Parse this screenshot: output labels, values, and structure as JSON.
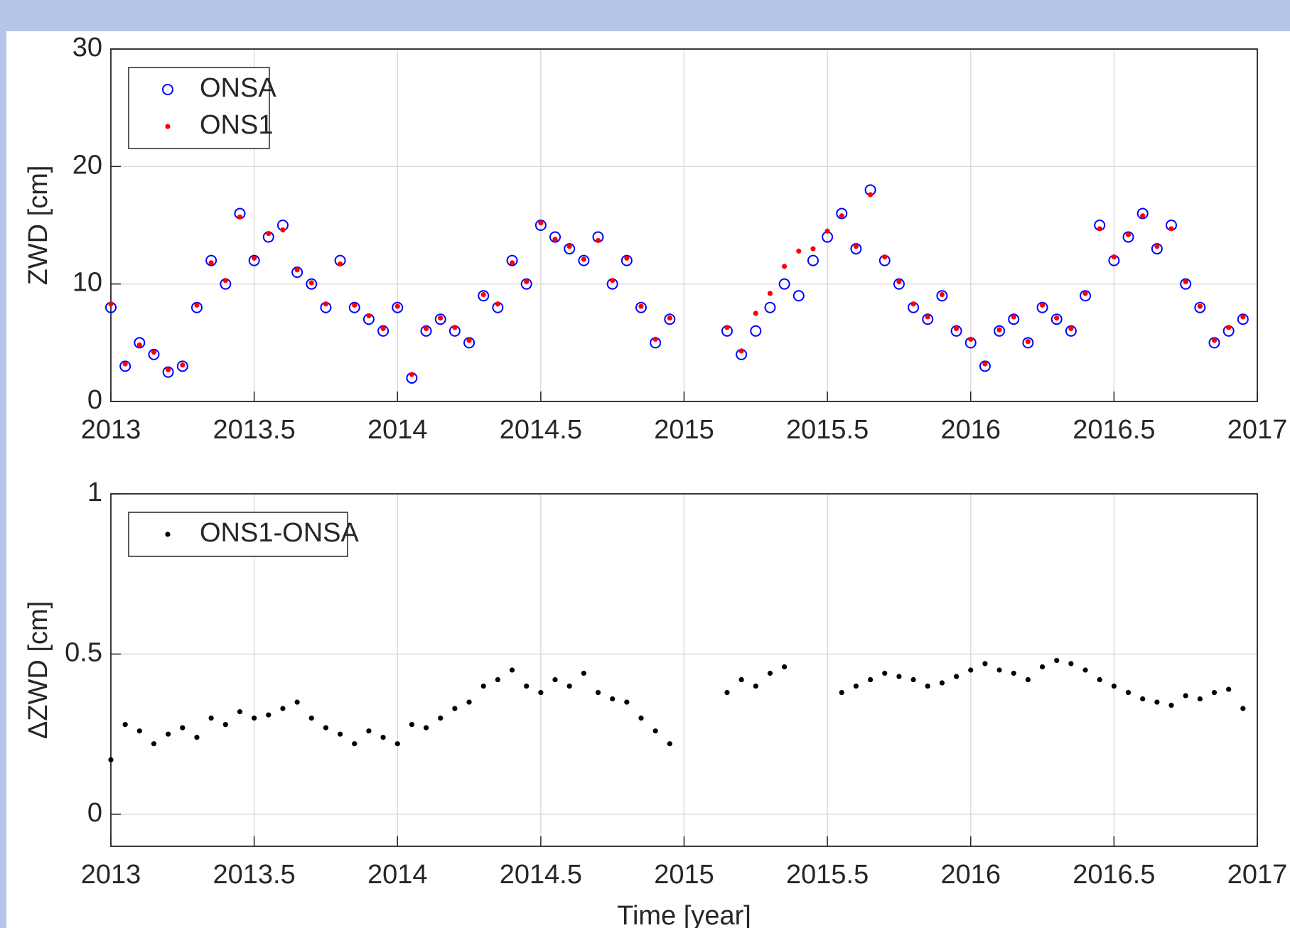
{
  "chart_data": [
    {
      "type": "scatter",
      "ylabel": "ZWD [cm]",
      "x": [
        2013,
        2013.05,
        2013.1,
        2013.15,
        2013.2,
        2013.25,
        2013.3,
        2013.35,
        2013.4,
        2013.45,
        2013.5,
        2013.55,
        2013.6,
        2013.65,
        2013.7,
        2013.75,
        2013.8,
        2013.85,
        2013.9,
        2013.95,
        2014,
        2014.05,
        2014.1,
        2014.15,
        2014.2,
        2014.25,
        2014.3,
        2014.35,
        2014.4,
        2014.45,
        2014.5,
        2014.55,
        2014.6,
        2014.65,
        2014.7,
        2014.75,
        2014.8,
        2014.85,
        2014.9,
        2014.95,
        2015.15,
        2015.2,
        2015.25,
        2015.3,
        2015.35,
        2015.4,
        2015.45,
        2015.5,
        2015.55,
        2015.6,
        2015.65,
        2015.7,
        2015.75,
        2015.8,
        2015.85,
        2015.9,
        2015.95,
        2016,
        2016.05,
        2016.1,
        2016.15,
        2016.2,
        2016.25,
        2016.3,
        2016.35,
        2016.4,
        2016.45,
        2016.5,
        2016.55,
        2016.6,
        2016.65,
        2016.7,
        2016.75,
        2016.8,
        2016.85,
        2016.9,
        2016.95
      ],
      "series": [
        {
          "name": "ONSA",
          "color": "#0000ff",
          "marker": "circle-open",
          "values": [
            8,
            3,
            5,
            4,
            2.5,
            3,
            8,
            12,
            10,
            16,
            12,
            14,
            15,
            11,
            10,
            8,
            12,
            8,
            7,
            6,
            8,
            2,
            6,
            7,
            6,
            5,
            9,
            8,
            12,
            10,
            15,
            14,
            13,
            12,
            14,
            10,
            12,
            8,
            5,
            7,
            6,
            4,
            6,
            8,
            10,
            9,
            12,
            14,
            16,
            13,
            18,
            12,
            10,
            8,
            7,
            9,
            6,
            5,
            3,
            6,
            7,
            5,
            8,
            7,
            6,
            9,
            15,
            12,
            14,
            16,
            13,
            15,
            10,
            8,
            5,
            6,
            7
          ]
        },
        {
          "name": "ONS1",
          "color": "#ff0000",
          "marker": "dot",
          "values": [
            8.3,
            3.2,
            4.8,
            4.2,
            2.7,
            3.1,
            8.2,
            11.8,
            10.3,
            15.7,
            12.2,
            14.3,
            14.6,
            11.2,
            10.1,
            8.3,
            11.7,
            8.2,
            7.3,
            6.2,
            8.1,
            2.3,
            6.2,
            7.1,
            6.3,
            5.2,
            9.1,
            8.3,
            11.8,
            10.2,
            15.2,
            13.8,
            13.2,
            12.1,
            13.7,
            10.3,
            12.2,
            8.1,
            5.3,
            7.1,
            6.3,
            4.3,
            7.5,
            9.2,
            11.5,
            12.8,
            13,
            14.5,
            15.8,
            13.2,
            17.6,
            12.3,
            10.2,
            8.3,
            7.2,
            9.1,
            6.2,
            5.3,
            3.2,
            6.1,
            7.2,
            5.1,
            8.2,
            7.1,
            6.2,
            9.2,
            14.7,
            12.3,
            14.2,
            15.8,
            13.2,
            14.7,
            10.2,
            8.1,
            5.2,
            6.3,
            7.2
          ]
        }
      ],
      "xlim": [
        2013,
        2017
      ],
      "xticks": [
        2013,
        2013.5,
        2014,
        2014.5,
        2015,
        2015.5,
        2016,
        2016.5,
        2017
      ],
      "ylim": [
        0,
        30
      ],
      "yticks": [
        0,
        10,
        20,
        30
      ],
      "grid": true,
      "legend": "upper-left"
    },
    {
      "type": "scatter",
      "ylabel": "ΔZWD [cm]",
      "xlabel": "Time [year]",
      "x": [
        2013,
        2013.05,
        2013.1,
        2013.15,
        2013.2,
        2013.25,
        2013.3,
        2013.35,
        2013.4,
        2013.45,
        2013.5,
        2013.55,
        2013.6,
        2013.65,
        2013.7,
        2013.75,
        2013.8,
        2013.85,
        2013.9,
        2013.95,
        2014,
        2014.05,
        2014.1,
        2014.15,
        2014.2,
        2014.25,
        2014.3,
        2014.35,
        2014.4,
        2014.45,
        2014.5,
        2014.55,
        2014.6,
        2014.65,
        2014.7,
        2014.75,
        2014.8,
        2014.85,
        2014.9,
        2014.95,
        2015.15,
        2015.2,
        2015.25,
        2015.3,
        2015.35,
        2015.55,
        2015.6,
        2015.65,
        2015.7,
        2015.75,
        2015.8,
        2015.85,
        2015.9,
        2015.95,
        2016,
        2016.05,
        2016.1,
        2016.15,
        2016.2,
        2016.25,
        2016.3,
        2016.35,
        2016.4,
        2016.45,
        2016.5,
        2016.55,
        2016.6,
        2016.65,
        2016.7,
        2016.75,
        2016.8,
        2016.85,
        2016.9,
        2016.95
      ],
      "series": [
        {
          "name": "ONS1-ONSA",
          "color": "#000000",
          "marker": "dot",
          "values": [
            0.17,
            0.28,
            0.26,
            0.22,
            0.25,
            0.27,
            0.24,
            0.3,
            0.28,
            0.32,
            0.3,
            0.31,
            0.33,
            0.35,
            0.3,
            0.27,
            0.25,
            0.22,
            0.26,
            0.24,
            0.22,
            0.28,
            0.27,
            0.3,
            0.33,
            0.35,
            0.4,
            0.42,
            0.45,
            0.4,
            0.38,
            0.42,
            0.4,
            0.44,
            0.38,
            0.36,
            0.35,
            0.3,
            0.26,
            0.22,
            0.38,
            0.42,
            0.4,
            0.44,
            0.46,
            0.38,
            0.4,
            0.42,
            0.44,
            0.43,
            0.42,
            0.4,
            0.41,
            0.43,
            0.45,
            0.47,
            0.45,
            0.44,
            0.42,
            0.46,
            0.48,
            0.47,
            0.45,
            0.42,
            0.4,
            0.38,
            0.36,
            0.35,
            0.34,
            0.37,
            0.36,
            0.38,
            0.39,
            0.33
          ]
        }
      ],
      "xlim": [
        2013,
        2017
      ],
      "xticks": [
        2013,
        2013.5,
        2014,
        2014.5,
        2015,
        2015.5,
        2016,
        2016.5,
        2017
      ],
      "ylim": [
        -0.1,
        1
      ],
      "yticks": [
        0,
        0.5,
        1
      ],
      "grid": true,
      "legend": "upper-left"
    }
  ]
}
